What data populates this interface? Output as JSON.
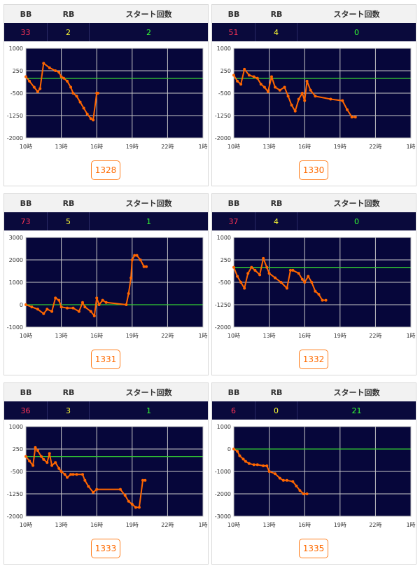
{
  "header_labels": {
    "bb": "BB",
    "rb": "RB",
    "start": "スタート回数"
  },
  "colors": {
    "plot_bg": "#06063a",
    "line": "#ff6600",
    "zero_line": "#33cc33",
    "grid": "#c8c8c8"
  },
  "chart_data": [
    {
      "type": "line",
      "id": "1328",
      "bb": "33",
      "rb": "2",
      "start": "2",
      "x_ticks": [
        "10時",
        "13時",
        "16時",
        "19時",
        "22時",
        "1時"
      ],
      "y_ticks": [
        1000,
        250,
        -500,
        -1250,
        -2000
      ],
      "ylim": [
        -2000,
        1000
      ],
      "xlim": [
        10,
        25
      ],
      "x": [
        10,
        10.3,
        10.7,
        11,
        11.2,
        11.5,
        12,
        12.5,
        12.8,
        13,
        13.2,
        13.5,
        13.8,
        14,
        14.3,
        14.6,
        14.9,
        15.2,
        15.5,
        15.7,
        16,
        16.1
      ],
      "y": [
        50,
        -100,
        -300,
        -450,
        -350,
        500,
        350,
        250,
        200,
        50,
        0,
        -100,
        -300,
        -500,
        -600,
        -800,
        -1000,
        -1200,
        -1350,
        -1400,
        -500,
        -500
      ]
    },
    {
      "type": "line",
      "id": "1330",
      "bb": "51",
      "rb": "4",
      "start": "0",
      "x_ticks": [
        "10時",
        "13時",
        "16時",
        "19時",
        "22時",
        "1時"
      ],
      "y_ticks": [
        1000,
        250,
        -500,
        -1250,
        -2000
      ],
      "ylim": [
        -2000,
        1000
      ],
      "xlim": [
        10,
        25
      ],
      "x": [
        10,
        10.3,
        10.6,
        10.9,
        11.3,
        11.7,
        12,
        12.3,
        12.6,
        12.9,
        13.2,
        13.5,
        13.9,
        14.3,
        14.6,
        14.9,
        15.2,
        15.5,
        15.8,
        16,
        16.2,
        16.5,
        16.9,
        18.2,
        19.2,
        19.6,
        20,
        20.3
      ],
      "y": [
        100,
        -100,
        -200,
        300,
        100,
        50,
        0,
        -200,
        -300,
        -450,
        50,
        -300,
        -400,
        -300,
        -600,
        -900,
        -1100,
        -700,
        -500,
        -750,
        -100,
        -400,
        -600,
        -700,
        -750,
        -1050,
        -1300,
        -1300
      ]
    },
    {
      "type": "line",
      "id": "1331",
      "bb": "73",
      "rb": "5",
      "start": "1",
      "x_ticks": [
        "10時",
        "13時",
        "16時",
        "19時",
        "22時",
        "1時"
      ],
      "y_ticks": [
        3000,
        2000,
        1000,
        0,
        -1000
      ],
      "ylim": [
        -1000,
        3000
      ],
      "xlim": [
        10,
        25
      ],
      "x": [
        10,
        10.5,
        11,
        11.5,
        11.8,
        12.2,
        12.5,
        12.8,
        13,
        13.5,
        14,
        14.5,
        14.8,
        15,
        15.5,
        15.8,
        16,
        16.2,
        16.5,
        16.8,
        18.5,
        18.7,
        18.9,
        19,
        19.2,
        19.4,
        19.7,
        20,
        20.2
      ],
      "y": [
        0,
        -100,
        -200,
        -400,
        -200,
        -300,
        300,
        200,
        -100,
        -150,
        -150,
        -300,
        100,
        -100,
        -300,
        -500,
        300,
        0,
        200,
        100,
        0,
        500,
        1200,
        2000,
        2200,
        2200,
        2000,
        1700,
        1700
      ]
    },
    {
      "type": "line",
      "id": "1332",
      "bb": "37",
      "rb": "4",
      "start": "0",
      "x_ticks": [
        "10時",
        "13時",
        "16時",
        "19時",
        "22時",
        "1時"
      ],
      "y_ticks": [
        1000,
        250,
        -500,
        -1250,
        -2000
      ],
      "ylim": [
        -2000,
        1000
      ],
      "xlim": [
        10,
        25
      ],
      "x": [
        10,
        10.3,
        10.6,
        10.9,
        11.2,
        11.5,
        11.8,
        12.2,
        12.5,
        12.8,
        13,
        13.5,
        14,
        14.5,
        14.8,
        15,
        15.5,
        15.8,
        16,
        16.3,
        16.6,
        16.9,
        17.2,
        17.5,
        17.8
      ],
      "y": [
        0,
        -300,
        -500,
        -700,
        -200,
        0,
        -100,
        -250,
        300,
        0,
        -200,
        -350,
        -500,
        -700,
        -100,
        -100,
        -200,
        -400,
        -500,
        -300,
        -500,
        -800,
        -900,
        -1100,
        -1100
      ]
    },
    {
      "type": "line",
      "id": "1333",
      "bb": "36",
      "rb": "3",
      "start": "1",
      "x_ticks": [
        "10時",
        "13時",
        "16時",
        "19時",
        "22時",
        "1時"
      ],
      "y_ticks": [
        1000,
        250,
        -500,
        -1250,
        -2000
      ],
      "ylim": [
        -2000,
        1000
      ],
      "xlim": [
        10,
        25
      ],
      "x": [
        10,
        10.3,
        10.6,
        10.8,
        11,
        11.3,
        11.5,
        11.8,
        12,
        12.2,
        12.5,
        12.8,
        13,
        13.3,
        13.5,
        13.8,
        14,
        14.3,
        14.8,
        15,
        15.3,
        15.7,
        16,
        18,
        18.4,
        18.7,
        19,
        19.3,
        19.6,
        19.9,
        20.1
      ],
      "y": [
        0,
        -150,
        -300,
        300,
        200,
        0,
        -100,
        -200,
        100,
        -300,
        -200,
        -400,
        -500,
        -600,
        -700,
        -600,
        -600,
        -600,
        -600,
        -800,
        -1000,
        -1200,
        -1100,
        -1100,
        -1300,
        -1500,
        -1600,
        -1700,
        -1700,
        -800,
        -800
      ]
    },
    {
      "type": "line",
      "id": "1335",
      "bb": "6",
      "rb": "0",
      "start": "21",
      "x_ticks": [
        "10時",
        "13時",
        "16時",
        "19時",
        "22時",
        "1時"
      ],
      "y_ticks": [
        1000,
        0,
        -1000,
        -2000,
        -3000
      ],
      "ylim": [
        -3000,
        1000
      ],
      "xlim": [
        10,
        25
      ],
      "x": [
        10,
        10.3,
        10.5,
        10.8,
        11,
        11.3,
        11.7,
        12,
        12.5,
        12.8,
        13,
        13.5,
        13.9,
        14.2,
        14.5,
        15,
        15.3,
        15.6,
        15.9,
        16.2
      ],
      "y": [
        0,
        -100,
        -300,
        -450,
        -550,
        -650,
        -700,
        -700,
        -750,
        -750,
        -1000,
        -1100,
        -1300,
        -1400,
        -1400,
        -1450,
        -1650,
        -1850,
        -2000,
        -2000
      ]
    }
  ]
}
